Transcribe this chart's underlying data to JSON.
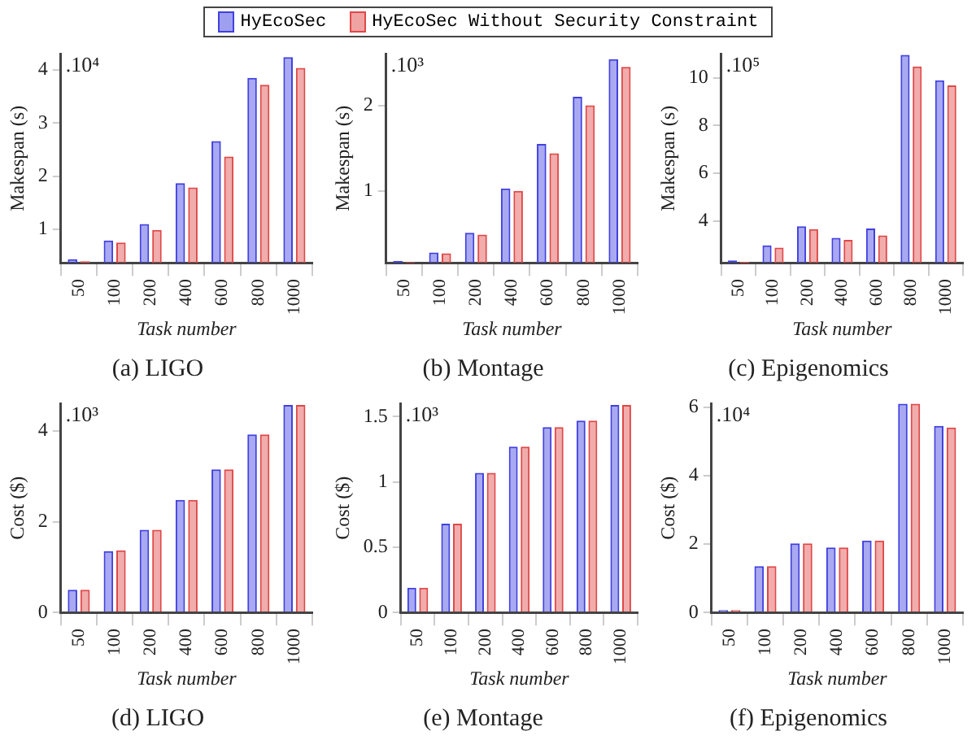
{
  "chart_data": [
    {
      "type": "bar",
      "title": "(a) LIGO",
      "xlabel": "Task number",
      "ylabel": "Makespan (s)",
      "annotations": [
        ".10⁴"
      ],
      "categories": [
        "50",
        "100",
        "200",
        "400",
        "600",
        "800",
        "1000"
      ],
      "legend": "top",
      "ylim": [
        0.37,
        4.3
      ],
      "yticks": [
        1,
        2,
        3,
        4
      ],
      "series": [
        {
          "name": "HyEcoSec",
          "color": "#4040e0",
          "values": [
            0.44,
            0.79,
            1.1,
            1.87,
            2.66,
            3.85,
            4.24
          ]
        },
        {
          "name": "HyEcoSec Without Security Constraint",
          "color": "#e04848",
          "values": [
            0.4,
            0.75,
            0.99,
            1.79,
            2.37,
            3.72,
            4.04
          ]
        }
      ]
    },
    {
      "type": "bar",
      "title": "(b) Montage",
      "xlabel": "Task number",
      "ylabel": "Makespan (s)",
      "annotations": [
        ".10³"
      ],
      "categories": [
        "50",
        "100",
        "200",
        "400",
        "600",
        "800",
        "1000"
      ],
      "ylim": [
        0.16,
        2.6
      ],
      "yticks": [
        1,
        2
      ],
      "series": [
        {
          "color": "#4040e0",
          "values": [
            0.18,
            0.28,
            0.51,
            1.03,
            1.55,
            2.1,
            2.54
          ]
        },
        {
          "color": "#e04848",
          "values": [
            0.17,
            0.27,
            0.49,
            1.0,
            1.44,
            2.0,
            2.45
          ]
        }
      ]
    },
    {
      "type": "bar",
      "title": "(c) Epigenomics",
      "xlabel": "Task number",
      "ylabel": "Makespan (s)",
      "annotations": [
        ".10⁵"
      ],
      "categories": [
        "50",
        "100",
        "200",
        "400",
        "600",
        "800",
        "1000"
      ],
      "ylim": [
        2.24,
        11
      ],
      "yticks": [
        4,
        6,
        8,
        10
      ],
      "series": [
        {
          "color": "#4040e0",
          "values": [
            2.34,
            2.97,
            3.77,
            3.29,
            3.68,
            10.96,
            9.9
          ]
        },
        {
          "color": "#e04848",
          "values": [
            2.28,
            2.88,
            3.65,
            3.2,
            3.39,
            10.48,
            9.68
          ]
        }
      ]
    },
    {
      "type": "bar",
      "title": "(d) LIGO",
      "xlabel": "Task number",
      "ylabel": "Cost ($)",
      "annotations": [
        ".10³"
      ],
      "categories": [
        "50",
        "100",
        "200",
        "400",
        "600",
        "800",
        "1000"
      ],
      "ylim": [
        0,
        4.6
      ],
      "yticks": [
        0,
        2,
        4
      ],
      "series": [
        {
          "color": "#4040e0",
          "values": [
            0.5,
            1.35,
            1.82,
            2.48,
            3.15,
            3.92,
            4.57
          ]
        },
        {
          "color": "#e04848",
          "values": [
            0.5,
            1.37,
            1.82,
            2.48,
            3.15,
            3.92,
            4.57
          ]
        }
      ]
    },
    {
      "type": "bar",
      "title": "(e) Montage",
      "xlabel": "Task number",
      "ylabel": "Cost ($)",
      "annotations": [
        ".10³"
      ],
      "categories": [
        "50",
        "100",
        "200",
        "400",
        "600",
        "800",
        "1000"
      ],
      "ylim": [
        0,
        1.6
      ],
      "yticks": [
        0,
        0.5,
        1,
        1.5
      ],
      "series": [
        {
          "color": "#4040e0",
          "values": [
            0.19,
            0.68,
            1.07,
            1.27,
            1.42,
            1.47,
            1.59
          ]
        },
        {
          "color": "#e04848",
          "values": [
            0.19,
            0.68,
            1.07,
            1.27,
            1.42,
            1.47,
            1.59
          ]
        }
      ]
    },
    {
      "type": "bar",
      "title": "(f) Epigenomics",
      "xlabel": "Task number",
      "ylabel": "Cost ($)",
      "annotations": [
        ".10⁴"
      ],
      "categories": [
        "50",
        "100",
        "200",
        "400",
        "600",
        "800",
        "1000"
      ],
      "ylim": [
        0,
        6.1
      ],
      "yticks": [
        0,
        2,
        4,
        6
      ],
      "series": [
        {
          "color": "#4040e0",
          "values": [
            0.07,
            1.35,
            2.02,
            1.9,
            2.1,
            6.1,
            5.45
          ]
        },
        {
          "color": "#e04848",
          "values": [
            0.07,
            1.35,
            2.02,
            1.9,
            2.1,
            6.1,
            5.4
          ]
        }
      ]
    }
  ]
}
